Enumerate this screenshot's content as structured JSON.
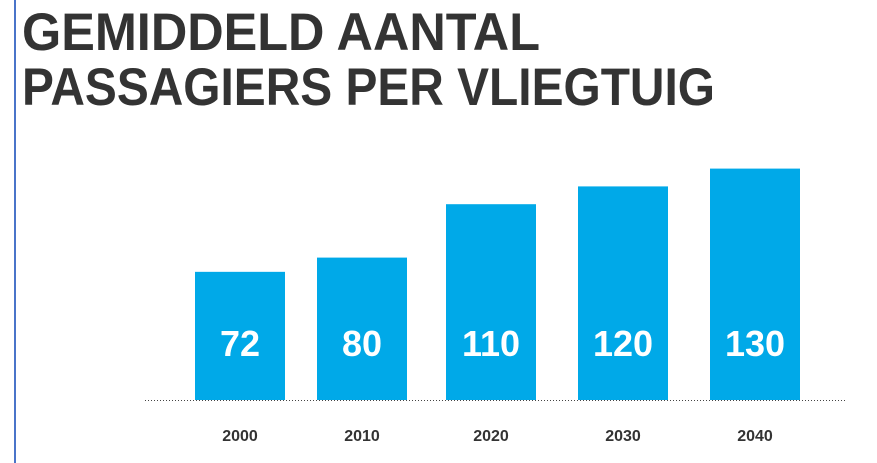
{
  "chart_data": {
    "type": "bar",
    "title": [
      "GEMIDDELD AANTAL",
      "PASSAGIERS PER VLIEGTUIG"
    ],
    "categories": [
      "2000",
      "2010",
      "2020",
      "2030",
      "2040"
    ],
    "values": [
      72,
      80,
      110,
      120,
      130
    ],
    "color": "#00a9e8"
  }
}
